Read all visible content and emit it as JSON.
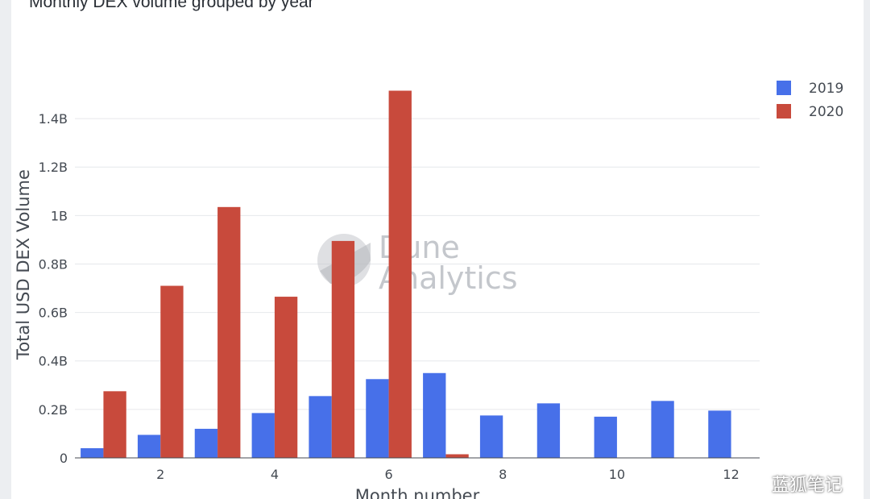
{
  "chart_data": {
    "type": "bar",
    "title": "Monthly DEX volume grouped by year",
    "xlabel": "Month number",
    "ylabel": "Total USD DEX Volume",
    "x": [
      1,
      2,
      3,
      4,
      5,
      6,
      7,
      8,
      9,
      10,
      11,
      12
    ],
    "xticks": [
      2,
      4,
      6,
      8,
      10,
      12
    ],
    "yticks": [
      0,
      200000000,
      400000000,
      600000000,
      800000000,
      1000000000,
      1200000000,
      1400000000
    ],
    "ytick_labels": [
      "0",
      "0.2B",
      "0.4B",
      "0.6B",
      "0.8B",
      "1B",
      "1.2B",
      "1.4B"
    ],
    "ylim": [
      0,
      1520000000
    ],
    "grid": true,
    "legend_position": "top-right",
    "series": [
      {
        "name": "2019",
        "color": "#4770e9",
        "values": [
          40000000,
          95000000,
          120000000,
          185000000,
          255000000,
          325000000,
          350000000,
          175000000,
          225000000,
          170000000,
          235000000,
          195000000
        ]
      },
      {
        "name": "2020",
        "color": "#c84a3c",
        "values": [
          275000000,
          710000000,
          1035000000,
          665000000,
          895000000,
          1515000000,
          15000000,
          null,
          null,
          null,
          null,
          null
        ]
      }
    ]
  },
  "watermark": {
    "line1": "Dune",
    "line2": "Analytics"
  },
  "wechat_badge": {
    "text": "蓝狐笔记",
    "icon": "wechat-icon"
  }
}
